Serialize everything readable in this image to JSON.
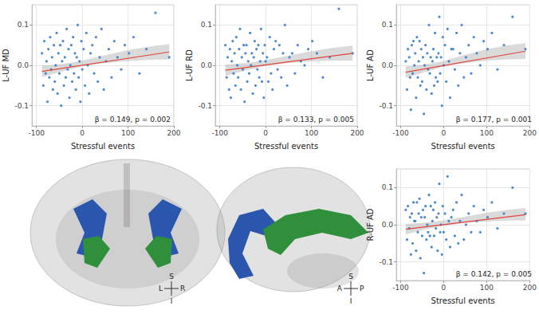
{
  "chart_data": [
    {
      "type": "scatter",
      "xlabel": "Stressful events",
      "ylabel": "L-UF MD",
      "annotation": "β = 0.149, p = 0.002",
      "xlim": [
        -110,
        200
      ],
      "xticks": [
        -100,
        0,
        100,
        200
      ],
      "ylim": [
        -0.15,
        0.15
      ],
      "yticks": [
        -0.1,
        {
          "value": 0,
          "label": "0.0"
        },
        0.1
      ],
      "grid": true,
      "series": [
        {
          "type": "scatter",
          "color": "#3a7dc9",
          "marker": "circle",
          "x": [
            -88,
            -85,
            -83,
            -80,
            -78,
            -76,
            -74,
            -72,
            -70,
            -68,
            -66,
            -64,
            -62,
            -60,
            -58,
            -56,
            -54,
            -52,
            -50,
            -48,
            -46,
            -44,
            -42,
            -40,
            -38,
            -36,
            -34,
            -32,
            -30,
            -28,
            -26,
            -24,
            -22,
            -20,
            -18,
            -16,
            -14,
            -12,
            -10,
            -8,
            -6,
            -4,
            -2,
            0,
            3,
            6,
            9,
            12,
            15,
            18,
            22,
            26,
            30,
            34,
            38,
            42,
            47,
            52,
            58,
            64,
            70,
            77,
            85,
            93,
            102,
            112,
            125,
            140,
            160,
            190
          ],
          "values": [
            0.03,
            -0.05,
            0.06,
            -0.02,
            0.01,
            -0.09,
            0.04,
            -0.03,
            0.07,
            -0.01,
            0.02,
            -0.06,
            0.05,
            -0.04,
            0.0,
            0.08,
            -0.07,
            0.03,
            -0.02,
            0.05,
            -0.1,
            0.01,
            0.06,
            -0.05,
            0.02,
            -0.03,
            0.09,
            -0.01,
            0.04,
            -0.08,
            0.0,
            0.05,
            -0.04,
            0.07,
            -0.02,
            0.03,
            -0.06,
            0.02,
            0.1,
            -0.03,
            0.01,
            -0.09,
            0.06,
            -0.01,
            0.04,
            -0.05,
            0.08,
            0.0,
            -0.07,
            0.03,
            0.05,
            -0.02,
            0.07,
            -0.04,
            0.02,
            0.09,
            -0.06,
            0.01,
            0.04,
            -0.03,
            0.06,
            0.02,
            -0.01,
            0.05,
            0.03,
            0.07,
            -0.02,
            0.04,
            0.13,
            0.02
          ]
        },
        {
          "type": "line",
          "color": "#e0453c",
          "x": [
            -88,
            190
          ],
          "values": [
            -0.015,
            0.033
          ]
        }
      ],
      "band": {
        "x": [
          -88,
          -40,
          0,
          50,
          100,
          150,
          190
        ],
        "lower": [
          -0.029,
          -0.014,
          -0.002,
          0.006,
          0.011,
          0.014,
          0.015
        ],
        "upper": [
          -0.001,
          0.004,
          0.012,
          0.025,
          0.038,
          0.047,
          0.053
        ]
      }
    },
    {
      "type": "scatter",
      "xlabel": "Stressful events",
      "ylabel": "L-UF RD",
      "annotation": "β = 0.133, p = 0.005",
      "xlim": [
        -110,
        200
      ],
      "xticks": [
        -100,
        0,
        100,
        200
      ],
      "ylim": [
        -0.15,
        0.15
      ],
      "yticks": [
        -0.1,
        {
          "value": 0,
          "label": "0.0"
        },
        0.1
      ],
      "grid": true,
      "series": [
        {
          "type": "scatter",
          "color": "#3a7dc9",
          "marker": "circle",
          "x": [
            -88,
            -85,
            -83,
            -80,
            -78,
            -76,
            -74,
            -72,
            -70,
            -68,
            -66,
            -64,
            -62,
            -60,
            -58,
            -56,
            -54,
            -52,
            -50,
            -48,
            -46,
            -44,
            -42,
            -40,
            -38,
            -36,
            -34,
            -32,
            -30,
            -28,
            -26,
            -24,
            -22,
            -20,
            -18,
            -16,
            -14,
            -12,
            -10,
            -8,
            -6,
            -4,
            -2,
            0,
            3,
            6,
            9,
            12,
            15,
            18,
            22,
            26,
            30,
            34,
            38,
            42,
            47,
            52,
            58,
            64,
            70,
            77,
            85,
            93,
            102,
            112,
            125,
            140,
            160,
            190
          ],
          "values": [
            0.05,
            -0.03,
            0.02,
            -0.06,
            0.04,
            -0.08,
            0.01,
            0.06,
            -0.02,
            0.03,
            -0.05,
            0.07,
            0.0,
            -0.03,
            0.04,
            0.09,
            -0.06,
            0.02,
            -0.01,
            0.05,
            -0.09,
            0.03,
            0.05,
            -0.04,
            0.01,
            -0.02,
            0.08,
            0.0,
            0.03,
            -0.07,
            0.02,
            0.06,
            -0.05,
            0.04,
            -0.01,
            0.05,
            -0.03,
            0.01,
            0.09,
            -0.04,
            0.03,
            -0.08,
            0.05,
            0.01,
            0.02,
            -0.04,
            0.07,
            -0.02,
            -0.06,
            0.04,
            0.06,
            -0.01,
            0.05,
            -0.03,
            0.03,
            0.1,
            -0.05,
            0.02,
            0.03,
            -0.02,
            0.05,
            0.01,
            0.0,
            0.04,
            0.06,
            0.03,
            -0.03,
            0.02,
            0.14,
            0.03
          ]
        },
        {
          "type": "line",
          "color": "#e0453c",
          "x": [
            -88,
            190
          ],
          "values": [
            -0.012,
            0.03
          ]
        }
      ],
      "band": {
        "x": [
          -88,
          -40,
          0,
          50,
          100,
          150,
          190
        ],
        "lower": [
          -0.026,
          -0.012,
          -0.001,
          0.006,
          0.01,
          0.012,
          0.012
        ],
        "upper": [
          0.002,
          0.006,
          0.013,
          0.024,
          0.035,
          0.044,
          0.049
        ]
      }
    },
    {
      "type": "scatter",
      "xlabel": "Stressful events",
      "ylabel": "L-UF AD",
      "annotation": "β = 0.177, p = 0.001",
      "xlim": [
        -110,
        200
      ],
      "xticks": [
        -100,
        0,
        100,
        200
      ],
      "ylim": [
        -0.15,
        0.15
      ],
      "yticks": [
        -0.1,
        {
          "value": 0,
          "label": "0.0"
        },
        0.1
      ],
      "grid": true,
      "series": [
        {
          "type": "scatter",
          "color": "#3a7dc9",
          "marker": "circle",
          "x": [
            -88,
            -85,
            -83,
            -80,
            -78,
            -76,
            -74,
            -72,
            -70,
            -68,
            -66,
            -64,
            -62,
            -60,
            -58,
            -56,
            -54,
            -52,
            -50,
            -48,
            -46,
            -44,
            -42,
            -40,
            -38,
            -36,
            -34,
            -32,
            -30,
            -28,
            -26,
            -24,
            -22,
            -20,
            -18,
            -16,
            -14,
            -12,
            -10,
            -8,
            -6,
            -4,
            -2,
            0,
            3,
            6,
            9,
            12,
            15,
            18,
            22,
            26,
            30,
            34,
            38,
            42,
            47,
            52,
            58,
            64,
            70,
            77,
            85,
            93,
            102,
            112,
            125,
            140,
            160,
            190
          ],
          "values": [
            0.01,
            -0.06,
            0.04,
            0.02,
            -0.03,
            -0.11,
            0.05,
            -0.02,
            0.06,
            0.0,
            0.03,
            -0.08,
            0.07,
            -0.03,
            0.01,
            0.06,
            -0.05,
            0.04,
            -0.04,
            0.02,
            -0.12,
            0.0,
            0.05,
            -0.06,
            0.03,
            -0.01,
            0.1,
            -0.02,
            0.02,
            -0.07,
            0.01,
            0.04,
            -0.05,
            0.08,
            -0.03,
            0.02,
            -0.04,
            0.03,
            0.12,
            -0.02,
            0.02,
            -0.1,
            0.07,
            0.0,
            0.05,
            -0.04,
            0.09,
            0.01,
            -0.08,
            0.04,
            0.04,
            -0.01,
            0.08,
            -0.05,
            0.03,
            0.1,
            -0.03,
            0.02,
            0.05,
            -0.02,
            0.07,
            0.03,
            0.0,
            0.06,
            0.04,
            0.08,
            -0.01,
            0.05,
            0.12,
            0.04
          ]
        },
        {
          "type": "line",
          "color": "#e0453c",
          "x": [
            -88,
            190
          ],
          "values": [
            -0.017,
            0.035
          ]
        }
      ],
      "band": {
        "x": [
          -88,
          -40,
          0,
          50,
          100,
          150,
          190
        ],
        "lower": [
          -0.031,
          -0.016,
          -0.003,
          0.006,
          0.012,
          0.015,
          0.016
        ],
        "upper": [
          -0.003,
          0.003,
          0.011,
          0.026,
          0.04,
          0.05,
          0.055
        ]
      }
    },
    {
      "type": "scatter",
      "xlabel": "Stressful events",
      "ylabel": "R-UF AD",
      "annotation": "β = 0.142, p = 0.005",
      "xlim": [
        -110,
        200
      ],
      "xticks": [
        -100,
        0,
        100,
        200
      ],
      "ylim": [
        -0.15,
        0.15
      ],
      "yticks": [
        -0.1,
        {
          "value": 0,
          "label": "0.0"
        },
        0.1
      ],
      "grid": true,
      "series": [
        {
          "type": "scatter",
          "color": "#3a7dc9",
          "marker": "circle",
          "x": [
            -88,
            -85,
            -83,
            -80,
            -78,
            -76,
            -74,
            -72,
            -70,
            -68,
            -66,
            -64,
            -62,
            -60,
            -58,
            -56,
            -54,
            -52,
            -50,
            -48,
            -46,
            -44,
            -42,
            -40,
            -38,
            -36,
            -34,
            -32,
            -30,
            -28,
            -26,
            -24,
            -22,
            -20,
            -18,
            -16,
            -14,
            -12,
            -10,
            -8,
            -6,
            -4,
            -2,
            0,
            3,
            6,
            9,
            12,
            15,
            18,
            22,
            26,
            30,
            34,
            38,
            42,
            47,
            52,
            58,
            64,
            70,
            77,
            85,
            93,
            102,
            112,
            125,
            140,
            160,
            190
          ],
          "values": [
            0.04,
            -0.04,
            0.05,
            -0.01,
            0.02,
            -0.08,
            0.03,
            -0.05,
            0.06,
            0.01,
            0.01,
            -0.07,
            0.06,
            -0.02,
            0.03,
            0.07,
            -0.09,
            0.02,
            -0.03,
            0.04,
            -0.13,
            0.02,
            0.05,
            -0.04,
            0.0,
            -0.02,
            0.08,
            -0.03,
            0.05,
            -0.06,
            0.01,
            0.04,
            -0.03,
            0.06,
            -0.01,
            0.02,
            -0.07,
            0.03,
            0.11,
            -0.02,
            0.0,
            -0.08,
            0.05,
            -0.02,
            0.03,
            -0.04,
            0.13,
            0.01,
            -0.06,
            0.02,
            0.04,
            -0.03,
            0.06,
            -0.05,
            0.01,
            0.08,
            -0.04,
            0.0,
            0.03,
            -0.02,
            0.05,
            0.01,
            -0.02,
            0.04,
            0.02,
            0.06,
            -0.01,
            0.03,
            0.1,
            0.03
          ]
        },
        {
          "type": "line",
          "color": "#e0453c",
          "x": [
            -88,
            190
          ],
          "values": [
            -0.012,
            0.027
          ]
        }
      ],
      "band": {
        "x": [
          -88,
          -40,
          0,
          50,
          100,
          150,
          190
        ],
        "lower": [
          -0.026,
          -0.012,
          -0.002,
          0.005,
          0.009,
          0.011,
          0.011
        ],
        "upper": [
          0.002,
          0.006,
          0.012,
          0.022,
          0.032,
          0.04,
          0.045
        ]
      }
    }
  ],
  "views": [
    {
      "up": "S",
      "down": "I",
      "left": "L",
      "right": "R"
    },
    {
      "up": "S",
      "down": "I",
      "left": "A",
      "right": "P"
    }
  ]
}
